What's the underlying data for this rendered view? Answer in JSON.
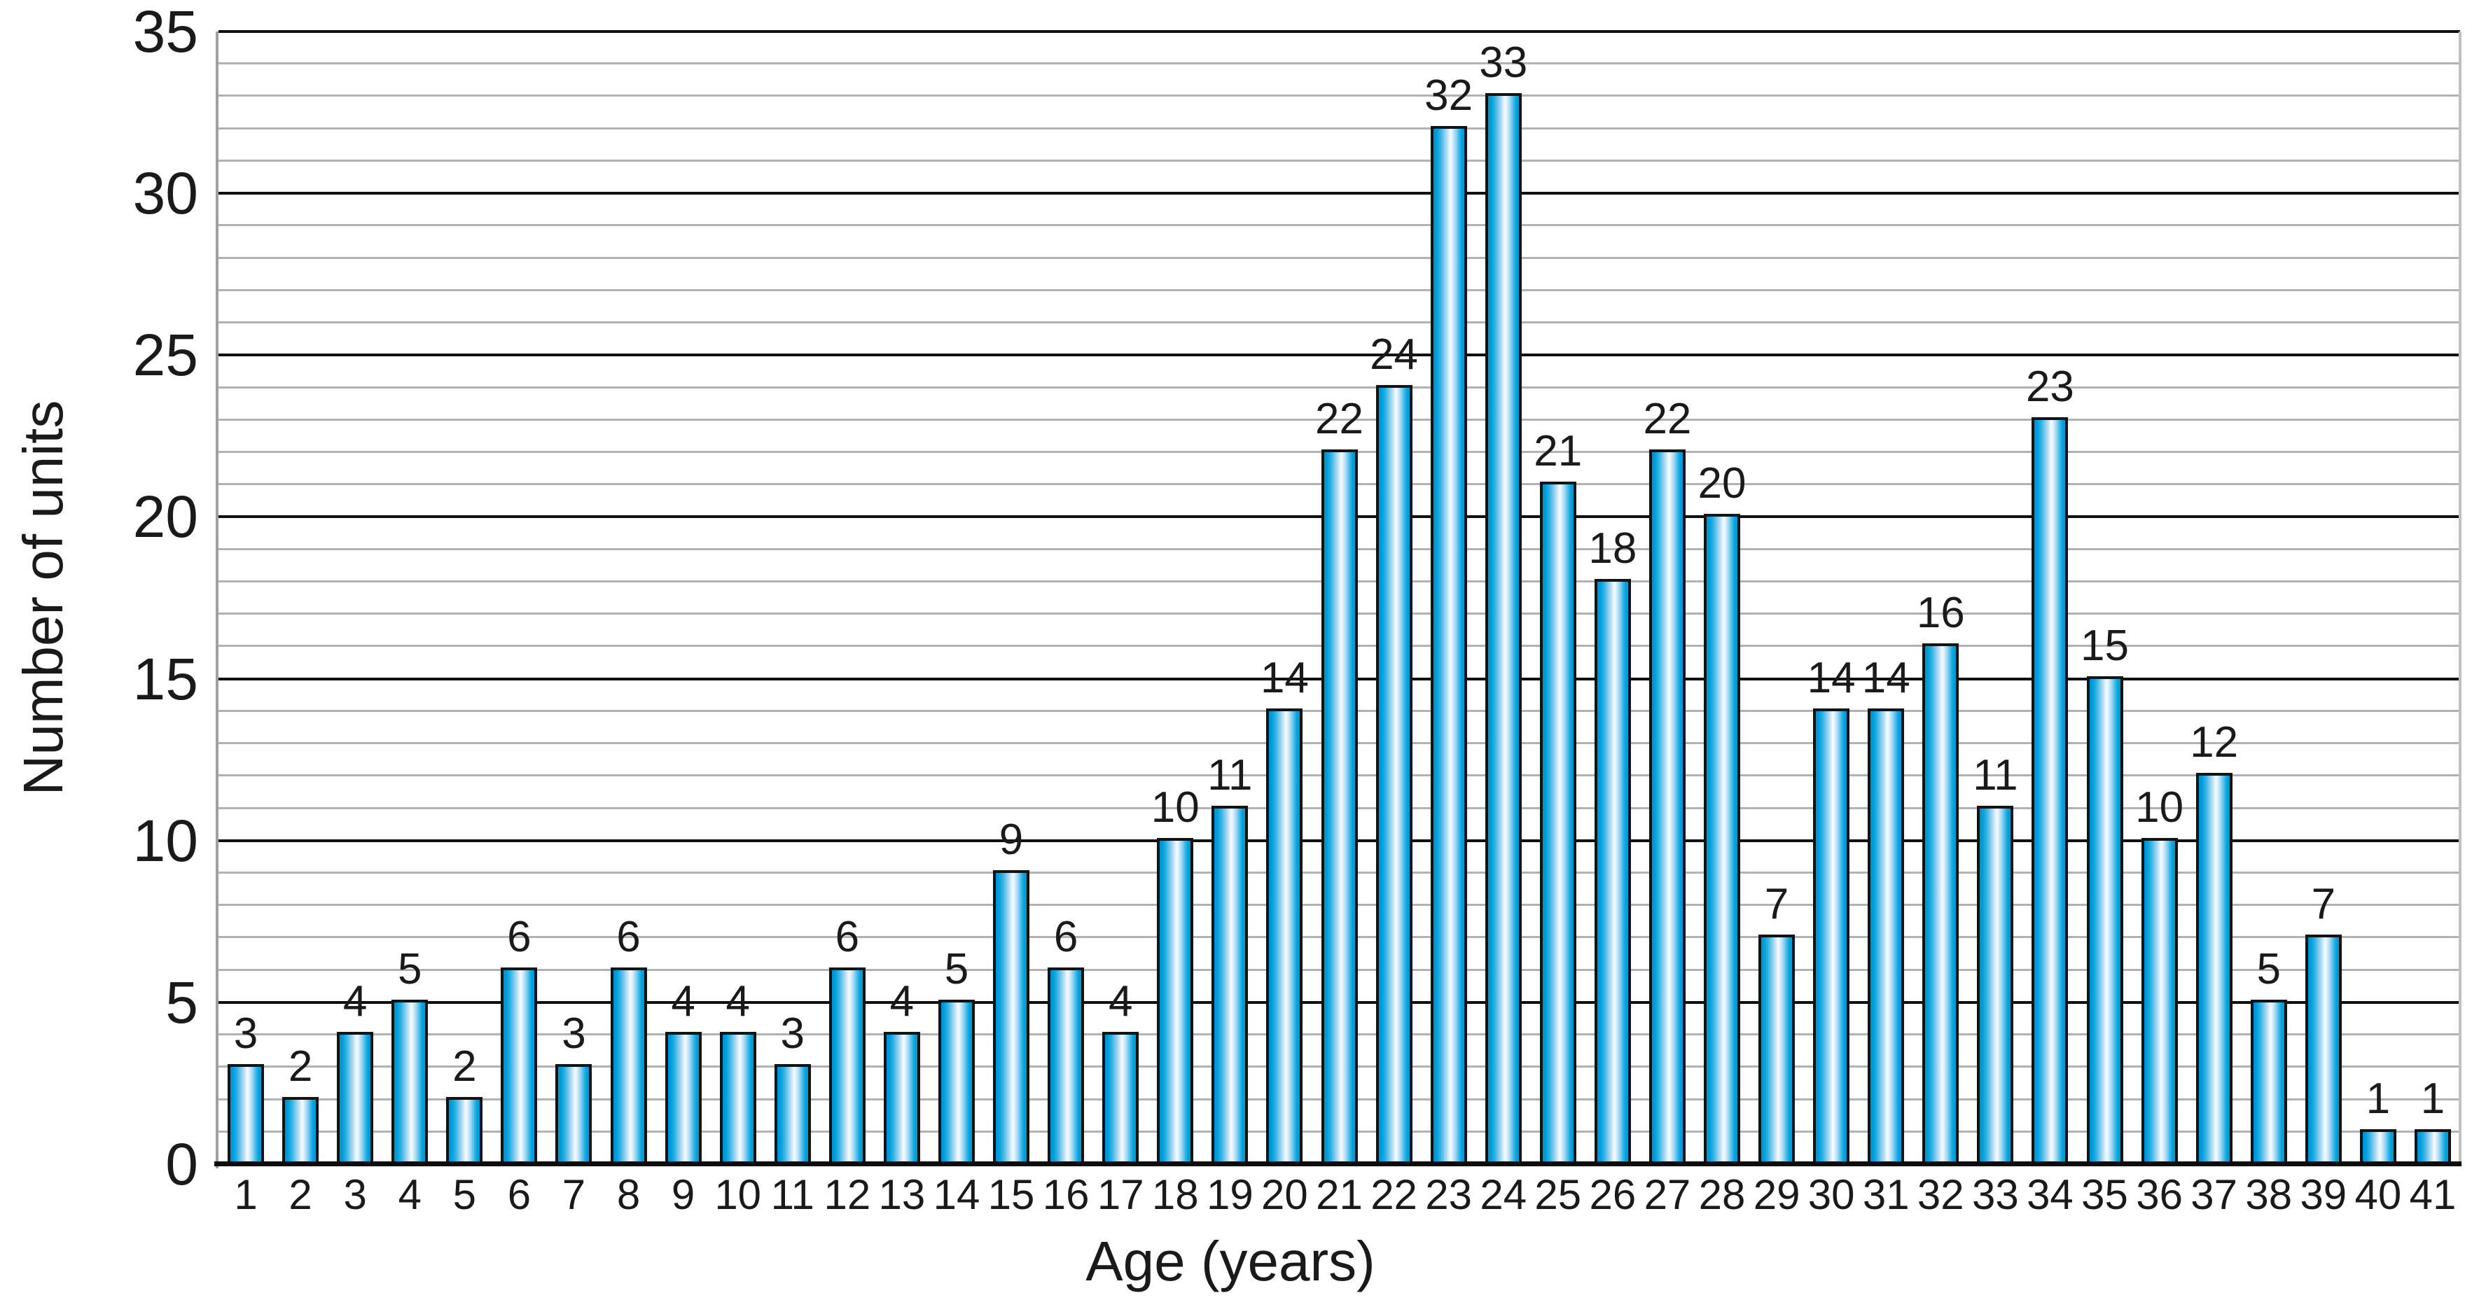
{
  "chart_data": {
    "type": "bar",
    "title": "",
    "xlabel": "Age (years)",
    "ylabel": "Number of units",
    "categories": [
      1,
      2,
      3,
      4,
      5,
      6,
      7,
      8,
      9,
      10,
      11,
      12,
      13,
      14,
      15,
      16,
      17,
      18,
      19,
      20,
      21,
      22,
      23,
      24,
      25,
      26,
      27,
      28,
      29,
      30,
      31,
      32,
      33,
      34,
      35,
      36,
      37,
      38,
      39,
      40,
      41
    ],
    "values": [
      3,
      2,
      4,
      5,
      2,
      6,
      3,
      6,
      4,
      4,
      3,
      6,
      4,
      5,
      9,
      6,
      4,
      10,
      11,
      14,
      22,
      24,
      32,
      33,
      21,
      18,
      22,
      20,
      7,
      14,
      14,
      16,
      11,
      23,
      15,
      10,
      12,
      5,
      7,
      1,
      1
    ],
    "bar_value_labels_shown": true,
    "ylim": [
      0,
      35
    ],
    "y_ticks": [
      0,
      5,
      10,
      15,
      20,
      25,
      30,
      35
    ],
    "y_minor_step": 1,
    "y_major_step": 5,
    "grid": "horizontal, minor every 1 (gray), major every 5 (black)",
    "legend": "none",
    "colors": {
      "bar_fill_main": "#009fdb",
      "bar_fill_highlight": "#f6fbfe",
      "bar_edge": "#131313",
      "major_gridline": "#101010",
      "minor_gridline": "#b2b2b2",
      "axis_line": "#a0a0a0",
      "text": "#1a1a1a",
      "background": "#ffffff"
    }
  }
}
